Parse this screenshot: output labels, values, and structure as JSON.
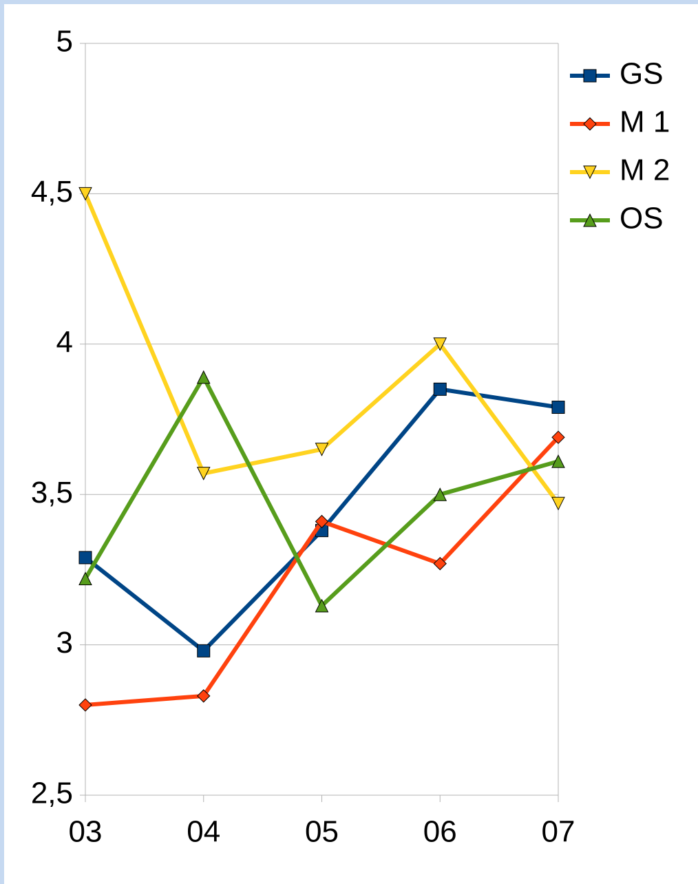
{
  "chart_data": {
    "type": "line",
    "categories": [
      "03",
      "04",
      "05",
      "06",
      "07"
    ],
    "series": [
      {
        "name": "GS",
        "color": "#004586",
        "marker": "square",
        "values": [
          3.29,
          2.98,
          3.38,
          3.85,
          3.79
        ]
      },
      {
        "name": "M 1",
        "color": "#ff420e",
        "marker": "diamond",
        "values": [
          2.8,
          2.83,
          3.41,
          3.27,
          3.69
        ]
      },
      {
        "name": "M 2",
        "color": "#ffd320",
        "marker": "triangle-down",
        "values": [
          4.5,
          3.57,
          3.65,
          4.0,
          3.47
        ]
      },
      {
        "name": "OS",
        "color": "#579d1c",
        "marker": "triangle-up",
        "values": [
          3.22,
          3.89,
          3.13,
          3.5,
          3.61
        ]
      }
    ],
    "ylim": [
      2.5,
      5
    ],
    "yticks": [
      {
        "value": 2.5,
        "label": "2,5"
      },
      3,
      {
        "value": 3.5,
        "label": "3,5"
      },
      4,
      {
        "value": 4.5,
        "label": "4,5"
      },
      5
    ],
    "grid": true,
    "legend": "right"
  }
}
